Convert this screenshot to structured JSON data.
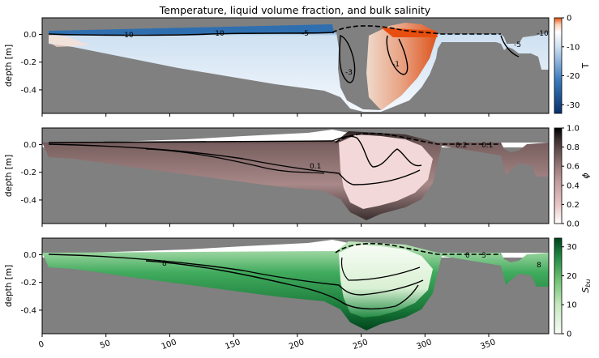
{
  "figure": {
    "title": "Temperature, liquid volume fraction, and bulk salinity"
  },
  "chart_data": [
    {
      "type": "heatmap",
      "variable": "T",
      "ylabel": "depth [m]",
      "colorbar_label": "T",
      "colormap": [
        "#08306b",
        "#3b7bbf",
        "#cfe1f2",
        "#ffffff",
        "#fdd0b5",
        "#f16913",
        "#e84e0f"
      ],
      "clim": [
        -33,
        0
      ],
      "colorbar_ticks": [
        0,
        -10,
        -20,
        -30
      ],
      "xlim": [
        0,
        397
      ],
      "ylim": [
        -0.57,
        0.12
      ],
      "x_ticks": [
        0,
        50,
        100,
        150,
        200,
        250,
        300,
        350
      ],
      "y_ticks": [
        0.0,
        -0.2,
        -0.4
      ],
      "contour_labels": [
        "-10",
        "-10",
        "-5",
        "-3",
        "-1",
        "-5",
        "-10"
      ],
      "background_color": "#808080",
      "surface_line": "dashed"
    },
    {
      "type": "heatmap",
      "variable": "phi",
      "ylabel": "depth [m]",
      "colorbar_label": "ϕ",
      "colormap": [
        "#ffffff",
        "#e8c4c4",
        "#c09a9a",
        "#7a6060",
        "#3a2e2e",
        "#000000"
      ],
      "clim": [
        0,
        1
      ],
      "colorbar_ticks": [
        0.0,
        0.2,
        0.4,
        0.6,
        0.8,
        1.0
      ],
      "xlim": [
        0,
        397
      ],
      "ylim": [
        -0.57,
        0.12
      ],
      "x_ticks": [
        0,
        50,
        100,
        150,
        200,
        250,
        300,
        350
      ],
      "y_ticks": [
        0.0,
        -0.2,
        -0.4
      ],
      "contour_labels": [
        "0.1",
        "0.2",
        "0.1"
      ],
      "background_color": "#808080",
      "surface_line": "dashed"
    },
    {
      "type": "heatmap",
      "variable": "S_bu",
      "ylabel": "depth [m]",
      "colorbar_label": "S_bu",
      "colormap": [
        "#f7fcf5",
        "#c7e9c0",
        "#74c476",
        "#238b45",
        "#00441b"
      ],
      "clim": [
        0,
        33
      ],
      "colorbar_ticks": [
        0,
        10,
        20,
        30
      ],
      "xlim": [
        0,
        397
      ],
      "ylim": [
        -0.57,
        0.12
      ],
      "x_ticks": [
        0,
        50,
        100,
        150,
        200,
        250,
        300,
        350
      ],
      "y_ticks": [
        0.0,
        -0.2,
        -0.4
      ],
      "contour_labels": [
        "8",
        "0",
        "3",
        "8"
      ],
      "background_color": "#808080",
      "surface_line": "dashed"
    }
  ]
}
